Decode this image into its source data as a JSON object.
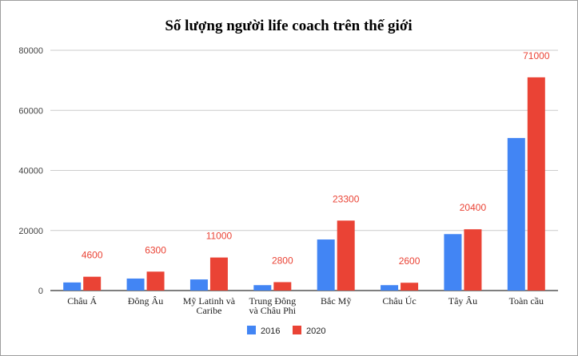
{
  "chart_data": {
    "type": "bar",
    "title": "Số lượng người life coach trên thế giới",
    "xlabel": "",
    "ylabel": "",
    "ylim": [
      0,
      80000
    ],
    "yticks": [
      "0",
      "20000",
      "40000",
      "60000",
      "80000"
    ],
    "grid": true,
    "legend_position": "bottom",
    "categories": [
      [
        "Châu Á"
      ],
      [
        "Đông Âu"
      ],
      [
        "Mỹ Latinh và",
        "Caribe"
      ],
      [
        "Trung Đông",
        "và Châu Phi"
      ],
      [
        "Bắc Mỹ"
      ],
      [
        "Châu Úc"
      ],
      [
        "Tây Âu"
      ],
      [
        "Toàn cầu"
      ]
    ],
    "series": [
      {
        "name": "2016",
        "color": "#4285f4",
        "values": [
          2700,
          4000,
          3700,
          1800,
          17000,
          1800,
          18800,
          50800
        ],
        "labels_shown": false
      },
      {
        "name": "2020",
        "color": "#ea4335",
        "values": [
          4600,
          6300,
          11000,
          2800,
          23300,
          2600,
          20400,
          71000
        ],
        "labels_shown": true
      }
    ],
    "data_label_color": "#ea4335",
    "gridline_color": "#cccccc",
    "axis_color": "#333333"
  }
}
